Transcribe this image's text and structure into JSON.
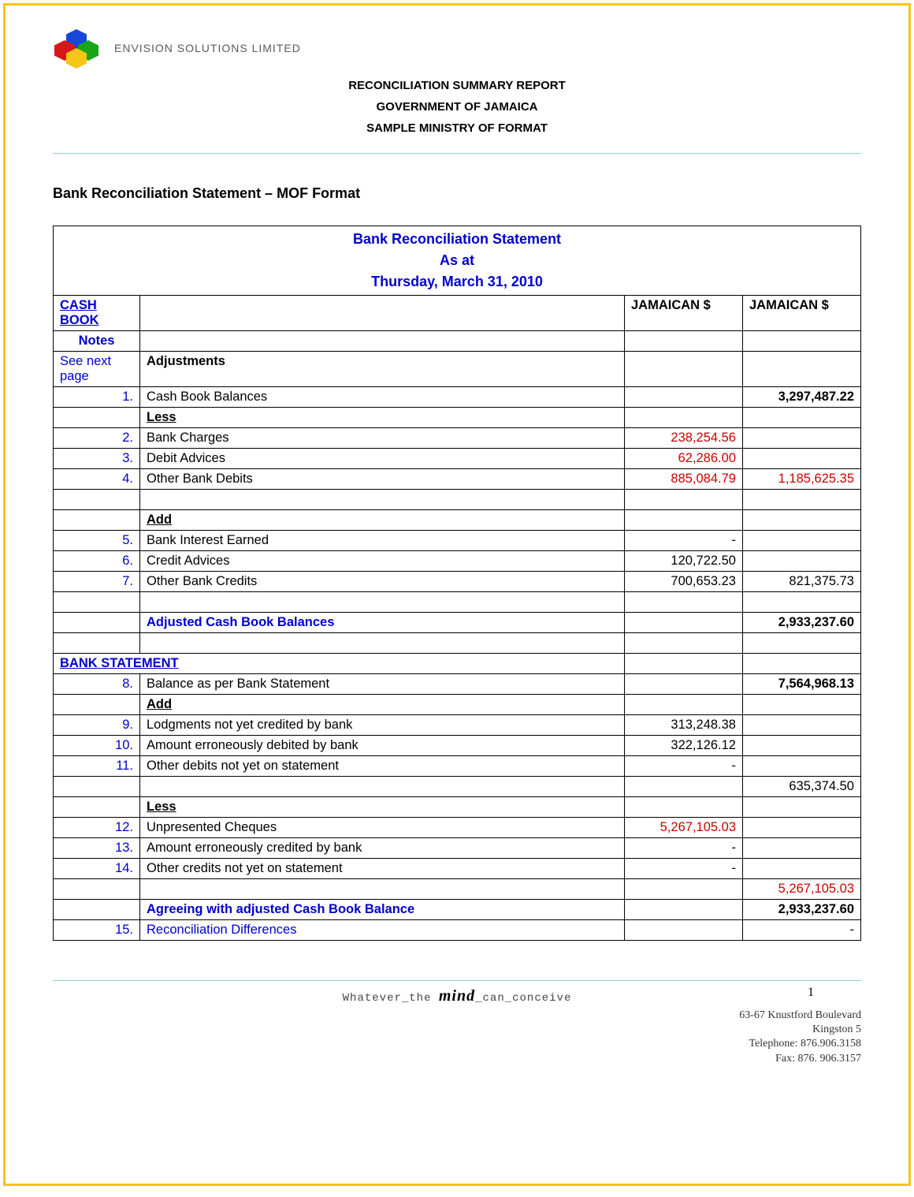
{
  "company": "ENVISION SOLUTIONS LIMITED",
  "report": {
    "line1": "RECONCILIATION SUMMARY REPORT",
    "line2": "GOVERNMENT OF JAMAICA",
    "line3": "SAMPLE MINISTRY OF FORMAT"
  },
  "section_title": "Bank Reconciliation Statement – MOF Format",
  "table_header": {
    "title": "Bank Reconciliation Statement",
    "asat": "As at",
    "date": "Thursday, March 31, 2010"
  },
  "col_headers": {
    "cashbook": "CASH BOOK",
    "jam1": "JAMAICAN $",
    "jam2": "JAMAICAN $"
  },
  "labels": {
    "notes": "Notes",
    "see_next": "See next page",
    "adjustments": "Adjustments",
    "less": "Less",
    "add": "Add",
    "adj_cash": "Adjusted Cash Book Balances",
    "bank_stmt": "BANK STATEMENT",
    "agree": "Agreeing with adjusted Cash Book Balance"
  },
  "rows": {
    "r1": {
      "n": "1.",
      "desc": "Cash Book Balances",
      "a1": "",
      "a2": "3,297,487.22"
    },
    "r2": {
      "n": "2.",
      "desc": "Bank Charges",
      "a1": "238,254.56",
      "a2": ""
    },
    "r3": {
      "n": "3.",
      "desc": "Debit Advices",
      "a1": "62,286.00",
      "a2": ""
    },
    "r4": {
      "n": "4.",
      "desc": "Other Bank Debits",
      "a1": "885,084.79",
      "a2": "1,185,625.35"
    },
    "r5": {
      "n": "5.",
      "desc": "Bank Interest Earned",
      "a1": "-",
      "a2": ""
    },
    "r6": {
      "n": "6.",
      "desc": "Credit Advices",
      "a1": "120,722.50",
      "a2": ""
    },
    "r7": {
      "n": "7.",
      "desc": "Other Bank Credits",
      "a1": "700,653.23",
      "a2": "821,375.73"
    },
    "adj": {
      "a2": "2,933,237.60"
    },
    "r8": {
      "n": "8.",
      "desc": "Balance as per Bank Statement",
      "a1": "",
      "a2": "7,564,968.13"
    },
    "r9": {
      "n": "9.",
      "desc": "Lodgments not yet credited by bank",
      "a1": "313,248.38",
      "a2": ""
    },
    "r10": {
      "n": "10.",
      "desc": "Amount erroneously debited by bank",
      "a1": "322,126.12",
      "a2": ""
    },
    "r11": {
      "n": "11.",
      "desc": "Other debits not yet on statement",
      "a1": "-",
      "a2": ""
    },
    "sub1": {
      "a2": "635,374.50"
    },
    "r12": {
      "n": "12.",
      "desc": "Unpresented Cheques",
      "a1": "5,267,105.03",
      "a2": ""
    },
    "r13": {
      "n": "13.",
      "desc": "Amount erroneously credited by bank",
      "a1": "-",
      "a2": ""
    },
    "r14": {
      "n": "14.",
      "desc": "Other credits not yet on statement",
      "a1": "-",
      "a2": ""
    },
    "sub2": {
      "a2": "5,267,105.03"
    },
    "agree": {
      "a2": "2,933,237.60"
    },
    "r15": {
      "n": "15.",
      "desc": "Reconciliation Differences",
      "a1": "",
      "a2": "-"
    }
  },
  "footer": {
    "tag_pre": "Whatever_the ",
    "tag_mind": "mind",
    "tag_post": "_can_conceive",
    "addr1": "63-67 Knustford Boulevard",
    "addr2": "Kingston 5",
    "addr3": "Telephone: 876.906.3158",
    "addr4": "Fax: 876. 906.3157",
    "page": "1"
  },
  "colors": {
    "border": "#f5c518",
    "blue": "#0000cc",
    "red": "#cc0000",
    "text": "#000000",
    "logo_blue": "#1846d6",
    "logo_red": "#d61818",
    "logo_yellow": "#f5c518",
    "logo_green": "#18a618",
    "hr": "#8ad4d4"
  }
}
